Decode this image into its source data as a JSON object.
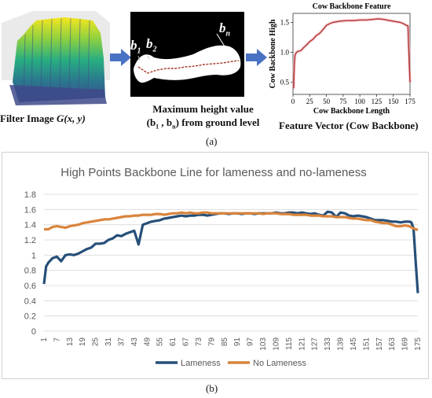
{
  "panel_a": {
    "filter_caption": "Filter Image G(x, y)",
    "filter_caption_plain": "Filter Image ",
    "filter_caption_math": "G(x, y)",
    "mask_labels": {
      "b1": "b",
      "b1_sub": "1",
      "b2": "b",
      "b2_sub": "2",
      "bn": "b",
      "bn_sub": "n"
    },
    "max_caption_line1": "Maximum height value",
    "max_caption_line2": "(b1 , bn) from ground level",
    "max_caption_line2_parts": [
      "(b",
      "1",
      " , b",
      "n",
      ") from ground level"
    ],
    "feature_caption": "Feature Vector (Cow Backbone)",
    "label": "(a)"
  },
  "panel_b": {
    "label": "(b)"
  },
  "chart_data": [
    {
      "type": "line",
      "title": "Cow Backbone Feature",
      "xlabel": "Cow Backbone Length",
      "ylabel": "Cow Backbone High",
      "xlim": [
        0,
        175
      ],
      "ylim": [
        0.3,
        1.65
      ],
      "x_ticks": [
        0,
        25,
        50,
        75,
        100,
        125,
        150,
        175
      ],
      "y_ticks": [
        0.5,
        1.0,
        1.5
      ],
      "grid": false,
      "series": [
        {
          "color": "#b5322a",
          "x": [
            1,
            2,
            3,
            5,
            8,
            12,
            16,
            20,
            25,
            30,
            35,
            40,
            45,
            50,
            55,
            60,
            70,
            80,
            90,
            100,
            110,
            120,
            128,
            135,
            140,
            145,
            150,
            155,
            160,
            165,
            168,
            170,
            172,
            174,
            175
          ],
          "y": [
            0.4,
            0.8,
            0.95,
            1.0,
            1.02,
            1.03,
            1.08,
            1.12,
            1.18,
            1.22,
            1.28,
            1.32,
            1.38,
            1.45,
            1.48,
            1.5,
            1.52,
            1.53,
            1.53,
            1.54,
            1.54,
            1.55,
            1.56,
            1.55,
            1.54,
            1.53,
            1.52,
            1.51,
            1.5,
            1.48,
            1.46,
            1.45,
            1.44,
            0.8,
            0.5
          ]
        }
      ]
    },
    {
      "type": "line",
      "title": "High Points Backbone Line for lameness and no-lameness",
      "xlabel": "",
      "ylabel": "",
      "ylim": [
        0,
        1.8
      ],
      "y_ticks": [
        0,
        0.2,
        0.4,
        0.6,
        0.8,
        1,
        1.2,
        1.4,
        1.6,
        1.8
      ],
      "x_ticks": [
        1,
        7,
        13,
        19,
        25,
        31,
        37,
        43,
        49,
        55,
        61,
        67,
        73,
        79,
        85,
        91,
        97,
        103,
        109,
        115,
        121,
        127,
        133,
        139,
        145,
        151,
        157,
        163,
        169,
        175
      ],
      "grid": true,
      "legend": "bottom-center",
      "series": [
        {
          "name": "Lameness",
          "color": "#264f78",
          "x": [
            1,
            2,
            3,
            5,
            7,
            9,
            11,
            13,
            15,
            17,
            19,
            21,
            23,
            25,
            27,
            29,
            31,
            33,
            35,
            37,
            39,
            41,
            43,
            45,
            47,
            49,
            51,
            53,
            55,
            57,
            59,
            61,
            63,
            65,
            67,
            69,
            71,
            73,
            75,
            77,
            79,
            81,
            83,
            85,
            87,
            89,
            91,
            93,
            95,
            97,
            99,
            101,
            103,
            105,
            107,
            109,
            111,
            113,
            115,
            117,
            119,
            121,
            123,
            125,
            127,
            129,
            131,
            133,
            135,
            137,
            139,
            141,
            143,
            145,
            147,
            149,
            151,
            153,
            155,
            157,
            159,
            161,
            163,
            165,
            167,
            169,
            171,
            172,
            173,
            174,
            175
          ],
          "y": [
            0.62,
            0.85,
            0.9,
            0.96,
            0.98,
            0.92,
            1.0,
            1.01,
            1.0,
            1.02,
            1.05,
            1.08,
            1.1,
            1.15,
            1.15,
            1.16,
            1.2,
            1.22,
            1.26,
            1.25,
            1.28,
            1.3,
            1.32,
            1.14,
            1.4,
            1.42,
            1.44,
            1.45,
            1.46,
            1.48,
            1.49,
            1.5,
            1.51,
            1.52,
            1.51,
            1.52,
            1.52,
            1.53,
            1.53,
            1.52,
            1.53,
            1.54,
            1.55,
            1.55,
            1.54,
            1.55,
            1.55,
            1.54,
            1.55,
            1.55,
            1.54,
            1.55,
            1.55,
            1.55,
            1.55,
            1.56,
            1.55,
            1.55,
            1.56,
            1.56,
            1.55,
            1.56,
            1.55,
            1.54,
            1.55,
            1.53,
            1.52,
            1.57,
            1.56,
            1.5,
            1.56,
            1.55,
            1.52,
            1.51,
            1.52,
            1.51,
            1.5,
            1.48,
            1.46,
            1.46,
            1.46,
            1.45,
            1.44,
            1.44,
            1.43,
            1.44,
            1.44,
            1.43,
            1.35,
            0.9,
            0.5
          ]
        },
        {
          "name": "No Lameness",
          "color": "#d9843b",
          "x": [
            1,
            3,
            5,
            7,
            9,
            11,
            13,
            15,
            17,
            19,
            21,
            23,
            25,
            27,
            29,
            31,
            33,
            35,
            37,
            39,
            41,
            43,
            45,
            47,
            49,
            51,
            53,
            55,
            57,
            59,
            61,
            63,
            65,
            67,
            69,
            71,
            73,
            75,
            77,
            79,
            81,
            83,
            85,
            87,
            89,
            91,
            93,
            95,
            97,
            99,
            101,
            103,
            105,
            107,
            109,
            111,
            113,
            115,
            117,
            119,
            121,
            123,
            125,
            127,
            129,
            131,
            133,
            135,
            137,
            139,
            141,
            143,
            145,
            147,
            149,
            151,
            153,
            155,
            157,
            159,
            161,
            163,
            165,
            167,
            169,
            171,
            173,
            175
          ],
          "y": [
            1.34,
            1.34,
            1.37,
            1.38,
            1.37,
            1.36,
            1.38,
            1.39,
            1.4,
            1.42,
            1.43,
            1.44,
            1.45,
            1.46,
            1.47,
            1.47,
            1.48,
            1.49,
            1.5,
            1.51,
            1.51,
            1.52,
            1.52,
            1.53,
            1.53,
            1.53,
            1.54,
            1.54,
            1.53,
            1.54,
            1.55,
            1.55,
            1.56,
            1.55,
            1.56,
            1.55,
            1.55,
            1.56,
            1.56,
            1.55,
            1.55,
            1.55,
            1.55,
            1.55,
            1.55,
            1.55,
            1.55,
            1.55,
            1.55,
            1.55,
            1.55,
            1.54,
            1.55,
            1.55,
            1.55,
            1.54,
            1.54,
            1.54,
            1.53,
            1.53,
            1.53,
            1.53,
            1.52,
            1.52,
            1.52,
            1.51,
            1.51,
            1.51,
            1.5,
            1.5,
            1.5,
            1.49,
            1.48,
            1.48,
            1.47,
            1.46,
            1.46,
            1.44,
            1.43,
            1.42,
            1.42,
            1.4,
            1.38,
            1.38,
            1.39,
            1.38,
            1.35,
            1.33
          ]
        }
      ]
    }
  ]
}
